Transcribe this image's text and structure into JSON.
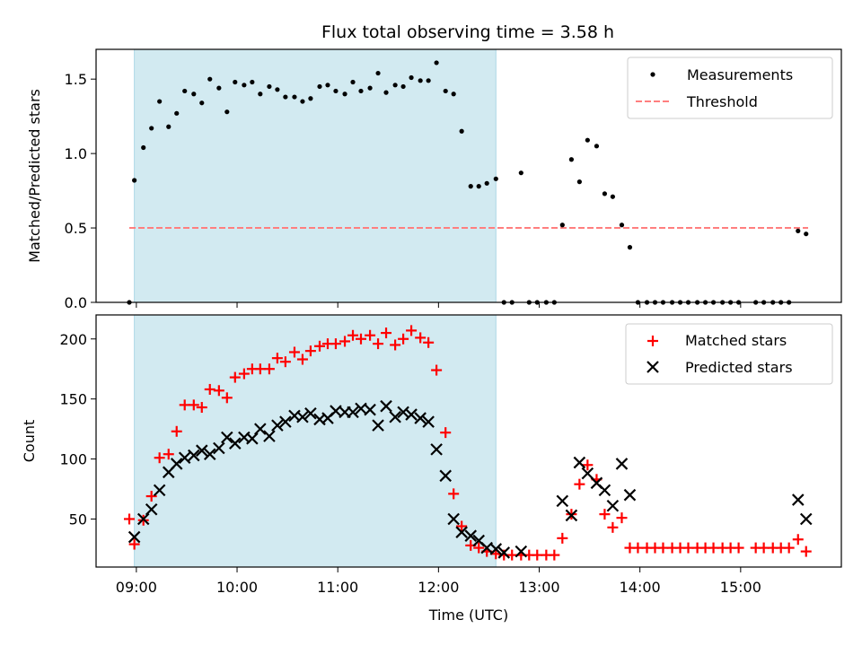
{
  "title": "Flux total observing time = 3.58 h",
  "colors": {
    "observing_span": "#add8e6",
    "threshold": "#ff7f7f",
    "matched": "#ff0000",
    "predicted": "#000000",
    "measurement": "#000000"
  },
  "chart_data": [
    {
      "type": "scatter",
      "title": "Flux total observing time = 3.58 h",
      "ylabel": "Matched/Predicted stars",
      "xlabel": "",
      "xlim": [
        8.6,
        16.0
      ],
      "ylim": [
        0,
        1.7
      ],
      "yticks": [
        0.0,
        0.5,
        1.0,
        1.5
      ],
      "ytick_labels": [
        "0.0",
        "0.5",
        "1.0",
        "1.5"
      ],
      "legend_position": "top-right",
      "legend": [
        "Measurements",
        "Threshold"
      ],
      "threshold": {
        "value": 0.5,
        "x_start": 8.93,
        "x_end": 15.67
      },
      "observing_span": [
        8.98,
        12.57
      ],
      "measurements": {
        "x": [
          8.93,
          8.98,
          9.07,
          9.15,
          9.23,
          9.32,
          9.4,
          9.48,
          9.57,
          9.65,
          9.73,
          9.82,
          9.9,
          9.98,
          10.07,
          10.15,
          10.23,
          10.32,
          10.4,
          10.48,
          10.57,
          10.65,
          10.73,
          10.82,
          10.9,
          10.98,
          11.07,
          11.15,
          11.23,
          11.32,
          11.4,
          11.48,
          11.57,
          11.65,
          11.73,
          11.82,
          11.9,
          11.98,
          12.07,
          12.15,
          12.23,
          12.32,
          12.4,
          12.48,
          12.57,
          12.65,
          12.73,
          12.82,
          12.9,
          12.98,
          13.07,
          13.15,
          13.23,
          13.32,
          13.4,
          13.48,
          13.57,
          13.65,
          13.73,
          13.82,
          13.9,
          13.98,
          14.07,
          14.15,
          14.23,
          14.32,
          14.4,
          14.48,
          14.57,
          14.65,
          14.73,
          14.82,
          14.9,
          14.98,
          15.15,
          15.23,
          15.32,
          15.4,
          15.48,
          15.57,
          15.65
        ],
        "y": [
          0.0,
          0.82,
          1.04,
          1.17,
          1.35,
          1.18,
          1.27,
          1.42,
          1.4,
          1.34,
          1.5,
          1.44,
          1.28,
          1.48,
          1.46,
          1.48,
          1.4,
          1.45,
          1.43,
          1.38,
          1.38,
          1.35,
          1.37,
          1.45,
          1.46,
          1.42,
          1.4,
          1.48,
          1.42,
          1.44,
          1.54,
          1.41,
          1.46,
          1.45,
          1.51,
          1.49,
          1.49,
          1.61,
          1.42,
          1.4,
          1.15,
          0.78,
          0.78,
          0.8,
          0.83,
          0.0,
          0.0,
          0.87,
          0.0,
          0.0,
          0.0,
          0.0,
          0.52,
          0.96,
          0.81,
          1.09,
          1.05,
          0.73,
          0.71,
          0.52,
          0.37,
          0.0,
          0.0,
          0.0,
          0.0,
          0.0,
          0.0,
          0.0,
          0.0,
          0.0,
          0.0,
          0.0,
          0.0,
          0.0,
          0.0,
          0.0,
          0.0,
          0.0,
          0.0,
          0.48,
          0.46
        ]
      }
    },
    {
      "type": "scatter",
      "title": "",
      "xlabel": "Time (UTC)",
      "ylabel": "Count",
      "xlim": [
        8.6,
        16.0
      ],
      "ylim": [
        10,
        220
      ],
      "xticks": [
        9,
        10,
        11,
        12,
        13,
        14,
        15
      ],
      "xtick_labels": [
        "09:00",
        "10:00",
        "11:00",
        "12:00",
        "13:00",
        "14:00",
        "15:00"
      ],
      "yticks": [
        50,
        100,
        150,
        200
      ],
      "ytick_labels": [
        "50",
        "100",
        "150",
        "200"
      ],
      "legend_position": "top-right",
      "legend": [
        "Matched stars",
        "Predicted stars"
      ],
      "observing_span": [
        8.98,
        12.57
      ],
      "series": [
        {
          "name": "Matched stars",
          "marker": "plus",
          "x": [
            8.93,
            8.98,
            9.07,
            9.15,
            9.23,
            9.32,
            9.4,
            9.48,
            9.57,
            9.65,
            9.73,
            9.82,
            9.9,
            9.98,
            10.07,
            10.15,
            10.23,
            10.32,
            10.4,
            10.48,
            10.57,
            10.65,
            10.73,
            10.82,
            10.9,
            10.98,
            11.07,
            11.15,
            11.23,
            11.32,
            11.4,
            11.48,
            11.57,
            11.65,
            11.73,
            11.82,
            11.9,
            11.98,
            12.07,
            12.15,
            12.23,
            12.32,
            12.4,
            12.48,
            12.57,
            12.65,
            12.73,
            12.82,
            12.9,
            12.98,
            13.07,
            13.15,
            13.23,
            13.32,
            13.4,
            13.48,
            13.57,
            13.65,
            13.73,
            13.82,
            13.9,
            13.98,
            14.07,
            14.15,
            14.23,
            14.32,
            14.4,
            14.48,
            14.57,
            14.65,
            14.73,
            14.82,
            14.9,
            14.98,
            15.15,
            15.23,
            15.32,
            15.4,
            15.48,
            15.57,
            15.65
          ],
          "y": [
            50,
            29,
            49,
            69,
            101,
            104,
            123,
            145,
            145,
            143,
            158,
            157,
            151,
            168,
            171,
            175,
            175,
            175,
            184,
            181,
            189,
            183,
            190,
            194,
            196,
            196,
            198,
            203,
            200,
            203,
            196,
            205,
            195,
            200,
            207,
            201,
            197,
            174,
            122,
            71,
            44,
            28,
            26,
            23,
            21,
            20,
            20,
            20,
            20,
            20,
            20,
            20,
            34,
            54,
            79,
            95,
            83,
            54,
            43,
            51,
            26,
            26,
            26,
            26,
            26,
            26,
            26,
            26,
            26,
            26,
            26,
            26,
            26,
            26,
            26,
            26,
            26,
            26,
            26,
            33,
            23
          ]
        },
        {
          "name": "Predicted stars",
          "marker": "x",
          "x": [
            8.98,
            9.07,
            9.15,
            9.23,
            9.32,
            9.4,
            9.48,
            9.57,
            9.65,
            9.73,
            9.82,
            9.9,
            9.98,
            10.07,
            10.15,
            10.23,
            10.32,
            10.4,
            10.48,
            10.57,
            10.65,
            10.73,
            10.82,
            10.9,
            10.98,
            11.07,
            11.15,
            11.23,
            11.32,
            11.4,
            11.48,
            11.57,
            11.65,
            11.73,
            11.82,
            11.9,
            11.98,
            12.07,
            12.15,
            12.23,
            12.32,
            12.4,
            12.48,
            12.57,
            12.65,
            12.82,
            13.23,
            13.32,
            13.4,
            13.48,
            13.57,
            13.65,
            13.73,
            13.82,
            13.9,
            15.57,
            15.65
          ],
          "y": [
            35,
            50,
            58,
            74,
            89,
            96,
            101,
            103,
            107,
            104,
            109,
            118,
            113,
            118,
            117,
            125,
            119,
            128,
            131,
            136,
            135,
            138,
            133,
            134,
            140,
            139,
            139,
            142,
            141,
            128,
            144,
            135,
            139,
            137,
            134,
            131,
            108,
            86,
            50,
            39,
            36,
            32,
            26,
            25,
            22,
            23,
            65,
            53,
            97,
            88,
            80,
            74,
            61,
            96,
            70,
            66,
            50
          ]
        }
      ]
    }
  ]
}
